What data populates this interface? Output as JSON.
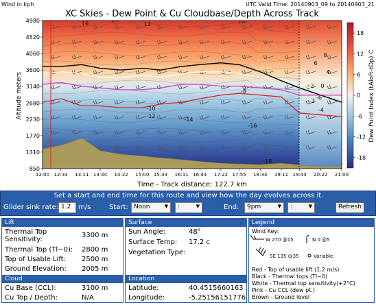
{
  "chart": {
    "corner_label": "Wind in kph",
    "valid_time": "UTC Valid Time: 20140903_09 to 20140903_21",
    "title": "XC Skies - Dew Point & Cu Cloudbase/Depth Across Track",
    "ylabel": "Altitude meters",
    "xlabel": "Time - Track distance: 122.7 km",
    "colorbar_label": "Dew Point Index (tAloft-tDp) C"
  },
  "chart_data": {
    "type": "heatmap",
    "title": "XC Skies - Dew Point & Cu Cloudbase/Depth Across Track",
    "xlabel": "Time - Track distance: 122.7 km",
    "ylabel": "Altitude meters",
    "x_ticks": [
      "12:00",
      "12:33",
      "13:11",
      "13:44",
      "14:22",
      "15:00",
      "15:33",
      "16:11",
      "16:44",
      "17:22",
      "17:55",
      "18:33",
      "19:11",
      "19:44",
      "20:22",
      "21:00"
    ],
    "y_ticks": [
      850,
      1310,
      1770,
      2230,
      2680,
      3140,
      3600,
      4060,
      4520,
      4980
    ],
    "ylim": [
      850,
      4980
    ],
    "colorbar": {
      "label": "Dew Point Index (tAloft-tDp) C",
      "ticks": [
        18,
        12,
        6,
        0,
        -6,
        -12,
        -18
      ],
      "range": [
        -21,
        21
      ]
    },
    "contour_labels": [
      "-18",
      "-16",
      "-14",
      "-12",
      "-10",
      "-8",
      "-6",
      "-4",
      "-2",
      "0",
      "2",
      "4",
      "6",
      "8",
      "10",
      "12",
      "14",
      "16"
    ],
    "series": [
      {
        "name": "Top of usable lift (1.2 m/s)",
        "color": "#e02020"
      },
      {
        "name": "Thermal tops (Tl~0)",
        "color": "#000000"
      },
      {
        "name": "Thermal top sensitivity (+2°C)",
        "color": "#ffffff"
      },
      {
        "name": "Cu CCL (dew pt.)",
        "color": "#e040c8"
      },
      {
        "name": "Ground level",
        "color": "#a89a5a"
      }
    ],
    "x": [
      0,
      33,
      71,
      104,
      142,
      180,
      213,
      251,
      284,
      322,
      355,
      393,
      431,
      464,
      502,
      540
    ],
    "series_values": {
      "ground": [
        1400,
        1500,
        1700,
        1350,
        1250,
        1200,
        1150,
        1100,
        1050,
        1000,
        980,
        960,
        1000,
        950,
        900,
        900
      ],
      "tops_black": [
        3700,
        3700,
        3750,
        3650,
        3600,
        3650,
        3600,
        3700,
        3750,
        3800,
        3750,
        3550,
        3300,
        3100,
        2900,
        2700
      ],
      "white": [
        3500,
        3550,
        3500,
        3400,
        3400,
        3450,
        3400,
        3500,
        3550,
        3550,
        3500,
        3400,
        3350,
        3200,
        3000,
        2800
      ],
      "magenta": [
        3200,
        3250,
        3150,
        3100,
        3050,
        3050,
        3100,
        3200,
        3200,
        3150,
        3150,
        3100,
        3050,
        2900,
        2900,
        2900
      ],
      "red": [
        2700,
        2800,
        2600,
        2600,
        2550,
        2550,
        2650,
        2700,
        2800,
        2900,
        2950,
        2900,
        2850,
        2400,
        2350,
        2300
      ]
    }
  },
  "controls": {
    "title": "Set a start and end time for this route and view how the day evolves across it.",
    "sink_label": "Glider sink rate:",
    "sink_value": "1.2",
    "sink_unit": "m/s",
    "start_label": "Start:",
    "start_hour": "Noon",
    "start_min": ":",
    "end_label": "End:",
    "end_hour": "9pm",
    "end_min": ":",
    "refresh": "Refresh"
  },
  "lift": {
    "header": "Lift",
    "rows": [
      {
        "label": "Thermal Top\nSensitivity:",
        "value": "3300 m"
      },
      {
        "label": "Thermal Top (Tl~0):",
        "value": "2800 m"
      },
      {
        "label": "Top of Usable Lift:",
        "value": "2500 m"
      },
      {
        "label": "Ground Elevation:",
        "value": "2005 m"
      }
    ]
  },
  "cloud": {
    "header": "Cloud",
    "rows": [
      {
        "label": "Cu Base (CCL):",
        "value": "3100 m"
      },
      {
        "label": "Cu Top / Depth:",
        "value": "N/A"
      }
    ]
  },
  "surface": {
    "header": "Surface",
    "rows": [
      {
        "label": "Sun Angle:",
        "value": "48°"
      },
      {
        "label": "Surface Temp:",
        "value": "17.2 c"
      },
      {
        "label": "Vegetation Type:",
        "value": ""
      }
    ]
  },
  "location": {
    "header": "Location",
    "rows": [
      {
        "label": "Latitude:",
        "value": "40.4515660163"
      },
      {
        "label": "Longitude:",
        "value": "-5.25156151776"
      }
    ]
  },
  "legend": {
    "header": "Legend",
    "wind_key": "Wind Key:",
    "examples": [
      "W 270 @15",
      "N 0 @5",
      "SE 135 @35",
      "Variable"
    ],
    "lines": [
      "Red - Top of usable lift (1.2 m/s)",
      "Black - Thermal tops (Tl~0)",
      "White - Thermal top sensitivity(+2°C)",
      "Pink - Cu CCL (dew pt.)",
      "Brown - Ground level"
    ]
  }
}
